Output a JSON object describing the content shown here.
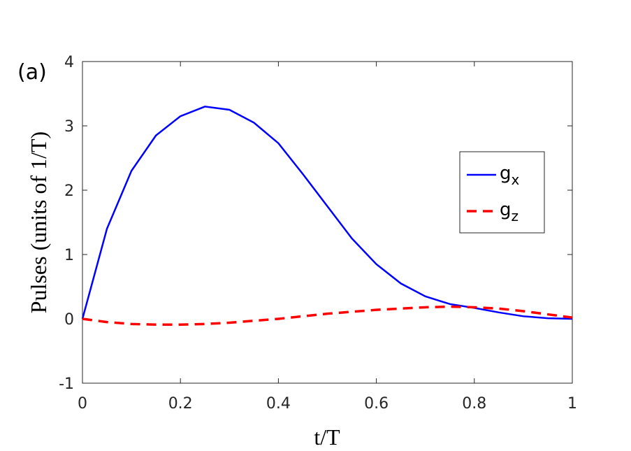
{
  "chart_data": {
    "type": "line",
    "annotation": "(a)",
    "xlabel": "t/T",
    "ylabel": "Pulses (units of 1/T)",
    "x": [
      0,
      0.05,
      0.1,
      0.15,
      0.2,
      0.25,
      0.3,
      0.35,
      0.4,
      0.45,
      0.5,
      0.55,
      0.6,
      0.65,
      0.7,
      0.75,
      0.8,
      0.85,
      0.9,
      0.95,
      1
    ],
    "series": [
      {
        "name": "gx",
        "color": "#0000ff",
        "dash": false,
        "values": [
          0,
          1.4,
          2.3,
          2.85,
          3.15,
          3.3,
          3.25,
          3.05,
          2.73,
          2.25,
          1.75,
          1.25,
          0.85,
          0.55,
          0.35,
          0.23,
          0.17,
          0.1,
          0.04,
          0.01,
          0
        ]
      },
      {
        "name": "gz",
        "color": "#ff0000",
        "dash": true,
        "values": [
          0,
          -0.05,
          -0.08,
          -0.09,
          -0.09,
          -0.08,
          -0.06,
          -0.03,
          0,
          0.04,
          0.08,
          0.11,
          0.14,
          0.16,
          0.18,
          0.19,
          0.18,
          0.16,
          0.12,
          0.07,
          0.02
        ]
      }
    ],
    "xlim": [
      0,
      1
    ],
    "xticks": [
      0,
      0.2,
      0.4,
      0.6,
      0.8,
      1
    ],
    "ylim": [
      -1,
      4
    ],
    "yticks": [
      -1,
      0,
      1,
      2,
      3,
      4
    ],
    "legend": "right"
  }
}
